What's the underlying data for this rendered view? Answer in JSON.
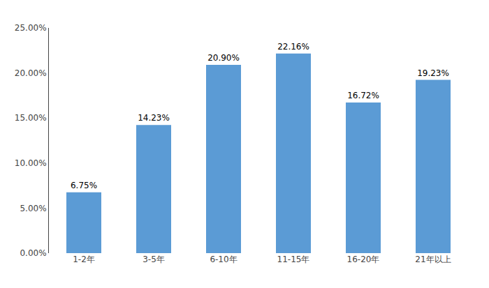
{
  "chart_data": {
    "type": "bar",
    "categories": [
      "1-2年",
      "3-5年",
      "6-10年",
      "11-15年",
      "16-20年",
      "21年以上"
    ],
    "values": [
      0.0675,
      0.1423,
      0.209,
      0.2216,
      0.1672,
      0.1923
    ],
    "value_labels": [
      "6.75%",
      "14.23%",
      "20.90%",
      "22.16%",
      "16.72%",
      "19.23%"
    ],
    "data_labels": true,
    "color": "#5B9BD5",
    "ylim": [
      0,
      0.25
    ],
    "yticks": [
      {
        "value": 0.0,
        "label": "0.00%"
      },
      {
        "value": 0.05,
        "label": "5.00%"
      },
      {
        "value": 0.1,
        "label": "10.00%"
      },
      {
        "value": 0.15,
        "label": "15.00%"
      },
      {
        "value": 0.2,
        "label": "20.00%"
      },
      {
        "value": 0.25,
        "label": "25.00%"
      }
    ],
    "grid": false
  }
}
